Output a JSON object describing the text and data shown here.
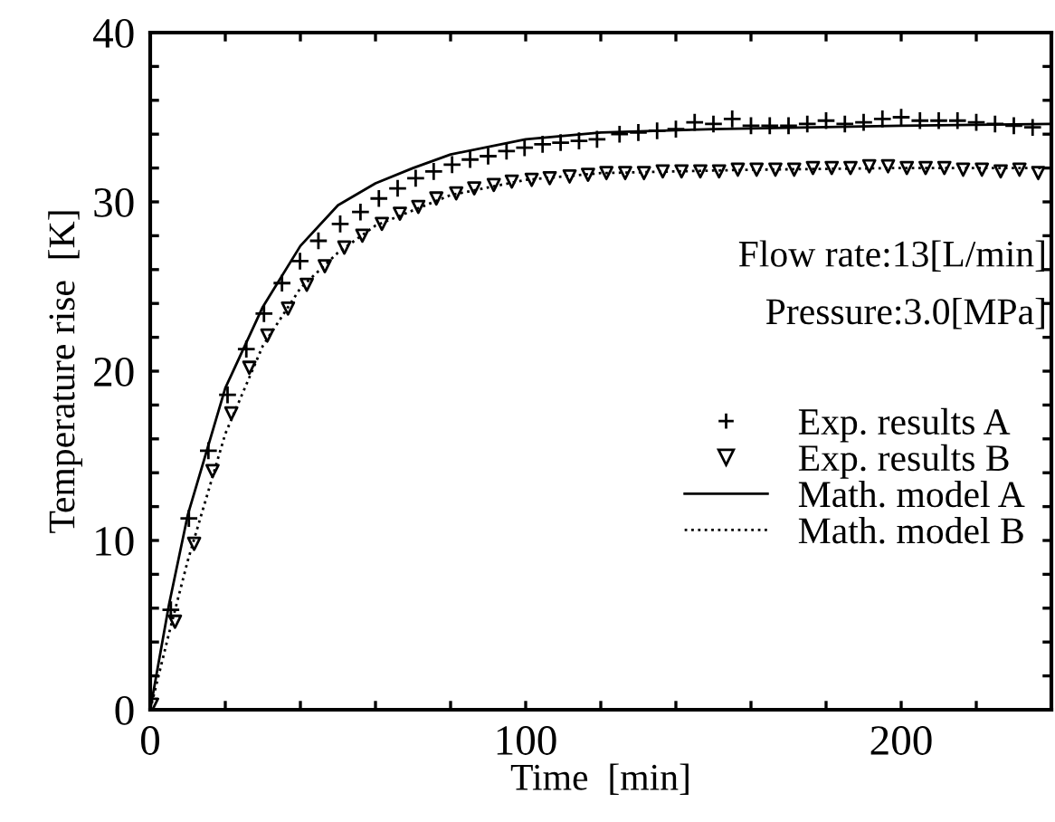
{
  "chart_data": {
    "type": "scatter",
    "xlabel": "Time  [min]",
    "ylabel": "Temperature rise  [K]",
    "xlim": [
      0,
      240
    ],
    "ylim": [
      0,
      40
    ],
    "xticks": [
      0,
      {
        "value": 20,
        "label": null
      },
      {
        "value": 40,
        "label": null
      },
      {
        "value": 60,
        "label": null
      },
      {
        "value": 80,
        "label": null
      },
      100,
      {
        "value": 120,
        "label": null
      },
      {
        "value": 140,
        "label": null
      },
      {
        "value": 160,
        "label": null
      },
      {
        "value": 180,
        "label": null
      },
      200,
      {
        "value": 220,
        "label": null
      },
      {
        "value": 240,
        "label": null
      }
    ],
    "yticks": [
      0,
      {
        "value": 2,
        "label": null
      },
      {
        "value": 4,
        "label": null
      },
      {
        "value": 6,
        "label": null
      },
      {
        "value": 8,
        "label": null
      },
      10,
      {
        "value": 12,
        "label": null
      },
      {
        "value": 14,
        "label": null
      },
      {
        "value": 16,
        "label": null
      },
      {
        "value": 18,
        "label": null
      },
      20,
      {
        "value": 22,
        "label": null
      },
      {
        "value": 24,
        "label": null
      },
      {
        "value": 26,
        "label": null
      },
      {
        "value": 28,
        "label": null
      },
      30,
      {
        "value": 32,
        "label": null
      },
      {
        "value": 34,
        "label": null
      },
      {
        "value": 36,
        "label": null
      },
      {
        "value": 38,
        "label": null
      },
      40
    ],
    "grid": false,
    "legend": "right",
    "annotations": [
      "Flow rate:13[L/min]",
      "Pressure:3.0[MPa]"
    ],
    "series": [
      {
        "name": "Exp. results A",
        "marker": "cross",
        "color": "#000000",
        "x": [
          5.5,
          10.3,
          15.5,
          20.6,
          25.6,
          30.3,
          35.1,
          39.9,
          44.8,
          50.6,
          56,
          60.9,
          65.9,
          70.7,
          75.5,
          80.4,
          85.2,
          90,
          94.9,
          99.7,
          104.5,
          109.3,
          114.2,
          119,
          125,
          130,
          135,
          140,
          145,
          150,
          155,
          160,
          165,
          170,
          175,
          180,
          185,
          190,
          195,
          200,
          205,
          210,
          215,
          220,
          225,
          230,
          235
        ],
        "values": [
          5.9,
          11.3,
          15.3,
          18.6,
          21.3,
          23.4,
          25.2,
          26.5,
          27.7,
          28.7,
          29.4,
          30.2,
          30.8,
          31.4,
          31.8,
          32.2,
          32.5,
          32.7,
          33.0,
          33.2,
          33.4,
          33.5,
          33.6,
          33.7,
          34.0,
          34.1,
          34.2,
          34.3,
          34.7,
          34.6,
          34.9,
          34.5,
          34.5,
          34.5,
          34.6,
          34.8,
          34.6,
          34.7,
          34.9,
          35.0,
          34.8,
          34.8,
          34.8,
          34.7,
          34.6,
          34.5,
          34.4
        ]
      },
      {
        "name": "Exp. results B",
        "marker": "triangle",
        "color": "#000000",
        "x": [
          0.5,
          6.6,
          11.7,
          16.6,
          21.6,
          26.4,
          31.2,
          36.7,
          41.7,
          46.5,
          51.7,
          56.5,
          61.7,
          66.5,
          71.4,
          76.2,
          81.5,
          86.3,
          91.5,
          96.3,
          101.6,
          106.4,
          111.7,
          116.6,
          121.5,
          126.5,
          131.5,
          136.5,
          141.5,
          146.5,
          151.5,
          156.5,
          161.5,
          166.5,
          171.5,
          176.5,
          181.5,
          186.5,
          191.5,
          196.5,
          201.5,
          206.5,
          211.5,
          216.5,
          221.5,
          226.5,
          231.5,
          236.5
        ],
        "values": [
          0.3,
          5.2,
          9.8,
          14.1,
          17.5,
          20.2,
          22.1,
          23.7,
          25.1,
          26.2,
          27.3,
          28.0,
          28.7,
          29.3,
          29.7,
          30.2,
          30.5,
          30.8,
          31.0,
          31.2,
          31.3,
          31.4,
          31.5,
          31.6,
          31.7,
          31.7,
          31.7,
          31.8,
          31.8,
          31.8,
          31.8,
          31.9,
          31.9,
          31.9,
          31.9,
          32.0,
          32.0,
          32.0,
          32.1,
          32.1,
          32.0,
          32.0,
          32.0,
          31.9,
          31.9,
          31.8,
          31.9,
          31.7
        ]
      },
      {
        "name": "Math. model A",
        "type": "line",
        "line_style": "solid",
        "color": "#000000",
        "x": [
          0,
          5,
          10,
          20,
          30,
          40,
          50,
          60,
          70,
          80,
          100,
          120,
          150,
          200,
          240
        ],
        "values": [
          0,
          6.2,
          11.5,
          19.0,
          23.8,
          27.4,
          29.8,
          31.1,
          32.0,
          32.8,
          33.7,
          34.1,
          34.3,
          34.5,
          34.6
        ]
      },
      {
        "name": "Math. model B",
        "type": "line",
        "line_style": "dotted",
        "color": "#000000",
        "x": [
          0,
          5,
          10,
          20,
          30,
          40,
          50,
          60,
          80,
          100,
          120,
          160,
          200,
          240
        ],
        "values": [
          0,
          4.5,
          8.8,
          16.3,
          21.5,
          24.9,
          27.0,
          28.6,
          30.4,
          31.3,
          31.7,
          31.9,
          32.0,
          32.0
        ]
      }
    ]
  }
}
